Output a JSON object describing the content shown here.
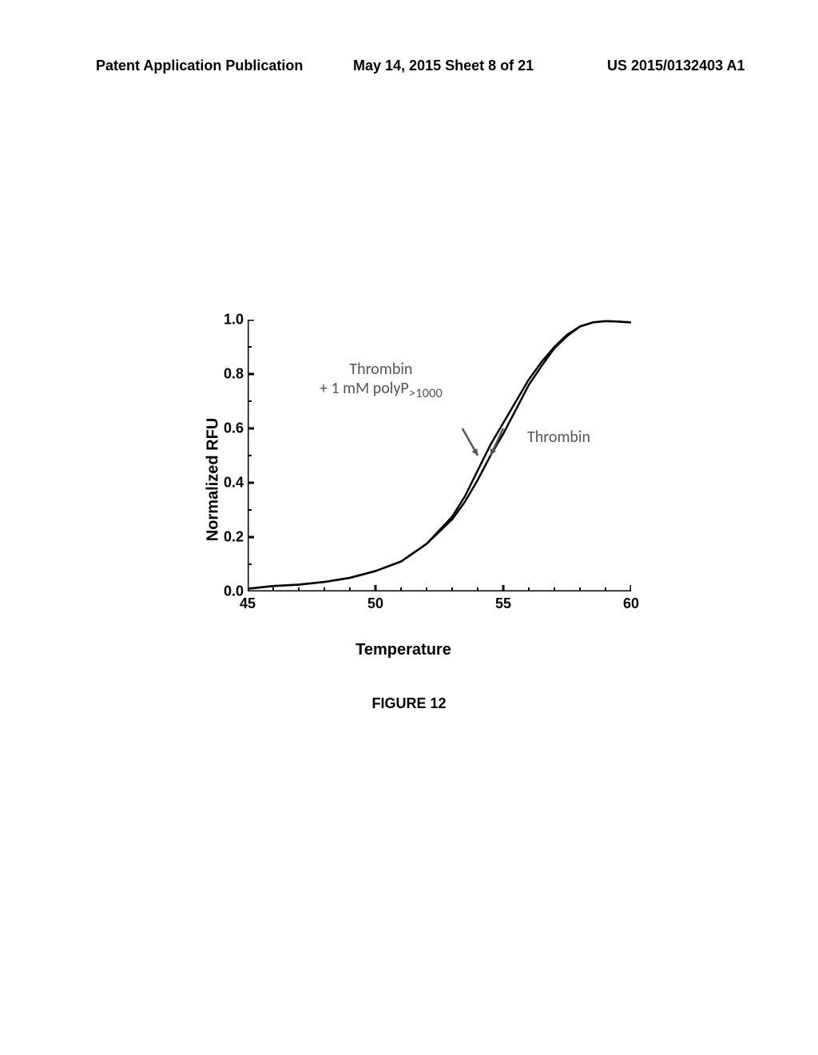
{
  "header": {
    "left": "Patent Application Publication",
    "center": "May 14, 2015  Sheet 8 of 21",
    "right": "US 2015/0132403 A1"
  },
  "chart": {
    "type": "line",
    "x_label": "Temperature",
    "y_label": "Normalized RFU",
    "x_label_fontsize": 20,
    "y_label_fontsize": 20,
    "tick_fontsize": 18,
    "xlim": [
      45,
      60
    ],
    "ylim": [
      0.0,
      1.0
    ],
    "x_ticks": [
      45,
      50,
      55,
      60
    ],
    "y_ticks": [
      0.0,
      0.2,
      0.4,
      0.6,
      0.8,
      1.0
    ],
    "x_minor_ticks_per_major": 5,
    "y_minor_ticks_per_major": 2,
    "line_color": "#000000",
    "line_width": 2.5,
    "background_color": "#ffffff",
    "axis_color": "#000000",
    "axis_width": 3,
    "tick_length_major": 8,
    "tick_length_minor": 5,
    "series": [
      {
        "name": "Thrombin",
        "x": [
          45,
          46,
          47,
          48,
          49,
          50,
          51,
          52,
          53,
          53.5,
          54,
          54.5,
          55,
          55.5,
          56,
          56.5,
          57,
          57.5,
          58,
          58.5,
          59,
          59.5,
          60
        ],
        "y": [
          0.01,
          0.02,
          0.025,
          0.035,
          0.05,
          0.075,
          0.11,
          0.175,
          0.265,
          0.33,
          0.41,
          0.5,
          0.58,
          0.67,
          0.76,
          0.83,
          0.895,
          0.94,
          0.975,
          0.99,
          0.995,
          0.993,
          0.99
        ]
      },
      {
        "name": "Thrombin + 1 mM polyP>1000",
        "x": [
          45,
          46,
          47,
          48,
          49,
          50,
          51,
          52,
          53,
          53.5,
          54,
          54.5,
          55,
          55.5,
          56,
          56.5,
          57,
          57.5,
          58,
          58.5,
          59,
          59.5,
          60
        ],
        "y": [
          0.01,
          0.02,
          0.025,
          0.035,
          0.05,
          0.075,
          0.11,
          0.175,
          0.275,
          0.35,
          0.445,
          0.54,
          0.62,
          0.7,
          0.78,
          0.845,
          0.9,
          0.945,
          0.975,
          0.99,
          0.995,
          0.993,
          0.99
        ]
      }
    ],
    "annotations": {
      "polyp_line1": "Thrombin",
      "polyp_line2_pre": "+ 1 mM polyP",
      "polyp_line2_sub": ">1000",
      "thrombin_label": "Thrombin",
      "annotation_color": "#555555",
      "annotation_fontsize": 20,
      "arrow_color": "#555555"
    }
  },
  "figure_caption": "FIGURE 12"
}
